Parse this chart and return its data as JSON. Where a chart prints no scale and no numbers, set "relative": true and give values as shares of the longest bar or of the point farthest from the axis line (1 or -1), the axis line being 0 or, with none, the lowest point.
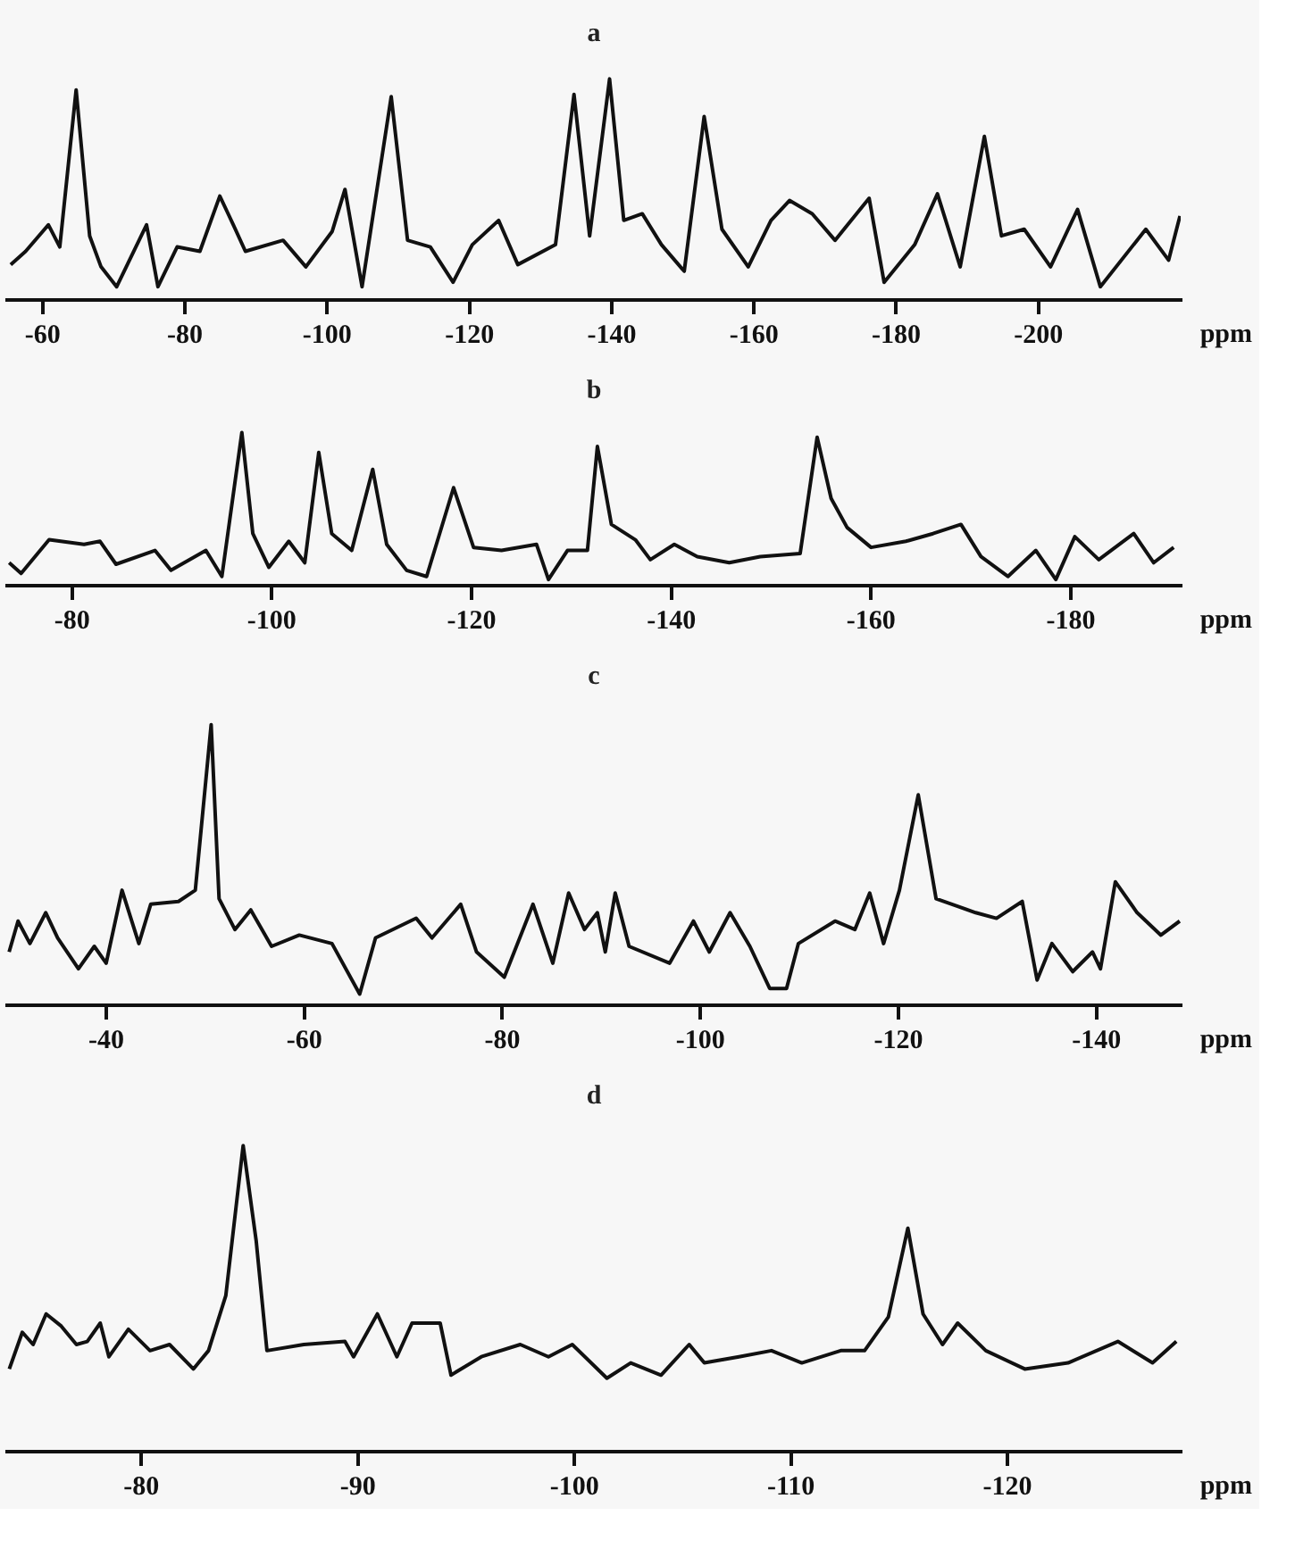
{
  "chart_data": [
    {
      "type": "line",
      "title": "a",
      "xlabel": "ppm",
      "relative": true,
      "xlim": [
        -55,
        -220
      ],
      "xticks": [
        -60,
        -80,
        -100,
        -120,
        -140,
        -160,
        -180,
        -200
      ],
      "color": "#111111",
      "x": [
        -55.5,
        -57.6,
        -60.8,
        -62.4,
        -64.7,
        -66.6,
        -68.2,
        -70.4,
        -74.6,
        -76.2,
        -78.9,
        -82.1,
        -84.9,
        -86.8,
        -88.5,
        -93.8,
        -97,
        -100.7,
        -102.5,
        -104.9,
        -109,
        -111.3,
        -114.5,
        -117.7,
        -120.4,
        -124.1,
        -126.8,
        -132.1,
        -134.7,
        -136.9,
        -139.7,
        -141.7,
        -144.3,
        -147,
        -150.2,
        -153,
        -155.5,
        -159.2,
        -162.4,
        -165,
        -168.2,
        -171.4,
        -176.2,
        -178.3,
        -182.6,
        -185.8,
        -189,
        -192.4,
        -194.8,
        -198,
        -201.7,
        -205.5,
        -208.7,
        -215.1,
        -218.3,
        -219.9
      ],
      "values": [
        0.16,
        0.22,
        0.34,
        0.24,
        0.95,
        0.29,
        0.15,
        0.06,
        0.34,
        0.06,
        0.24,
        0.22,
        0.47,
        0.34,
        0.22,
        0.27,
        0.15,
        0.31,
        0.5,
        0.06,
        0.92,
        0.27,
        0.24,
        0.08,
        0.25,
        0.36,
        0.16,
        0.25,
        0.93,
        0.29,
        1,
        0.36,
        0.39,
        0.25,
        0.13,
        0.83,
        0.32,
        0.15,
        0.36,
        0.45,
        0.39,
        0.27,
        0.46,
        0.08,
        0.25,
        0.48,
        0.15,
        0.74,
        0.29,
        0.32,
        0.15,
        0.41,
        0.06,
        0.32,
        0.18,
        0.38
      ]
    },
    {
      "type": "line",
      "title": "b",
      "xlabel": "ppm",
      "relative": true,
      "xlim": [
        -73.5,
        -191
      ],
      "xticks": [
        -80,
        -100,
        -120,
        -140,
        -160,
        -180
      ],
      "color": "#111111",
      "x": [
        -73.7,
        -74.9,
        -77.7,
        -81.2,
        -82.8,
        -84.4,
        -88.3,
        -89.9,
        -93.4,
        -95,
        -97,
        -98.1,
        -99.7,
        -101.7,
        -103.3,
        -104.7,
        -106,
        -108,
        -110.1,
        -111.5,
        -113.5,
        -115.5,
        -118.2,
        -120.2,
        -123,
        -126.5,
        -127.7,
        -129.6,
        -131.6,
        -132.6,
        -134,
        -136.4,
        -137.9,
        -140.3,
        -142.6,
        -145.8,
        -148.9,
        -152.9,
        -154.6,
        -156,
        -157.6,
        -160,
        -163.5,
        -166.2,
        -169,
        -171,
        -173.7,
        -176.5,
        -178.5,
        -180.4,
        -182.8,
        -186.3,
        -188.3,
        -190.3
      ],
      "values": [
        0.15,
        0.08,
        0.3,
        0.27,
        0.29,
        0.14,
        0.23,
        0.1,
        0.23,
        0.06,
        1,
        0.34,
        0.12,
        0.29,
        0.15,
        0.87,
        0.34,
        0.23,
        0.76,
        0.27,
        0.1,
        0.06,
        0.64,
        0.25,
        0.23,
        0.27,
        0.04,
        0.23,
        0.23,
        0.91,
        0.4,
        0.3,
        0.17,
        0.27,
        0.19,
        0.15,
        0.19,
        0.21,
        0.97,
        0.57,
        0.38,
        0.25,
        0.29,
        0.34,
        0.4,
        0.19,
        0.06,
        0.23,
        0.04,
        0.32,
        0.17,
        0.34,
        0.15,
        0.25
      ]
    },
    {
      "type": "line",
      "title": "c",
      "xlabel": "ppm",
      "relative": true,
      "xlim": [
        -30,
        -148.5
      ],
      "xticks": [
        -40,
        -60,
        -80,
        -100,
        -120,
        -140
      ],
      "color": "#111111",
      "x": [
        -30.2,
        -31.1,
        -32.3,
        -33.9,
        -35.1,
        -37.2,
        -38.8,
        -40,
        -41.6,
        -43.3,
        -44.5,
        -47.3,
        -49,
        -50.6,
        -51.4,
        -53,
        -54.6,
        -56.7,
        -59.5,
        -62.8,
        -65.6,
        -67.2,
        -71.3,
        -72.9,
        -75.8,
        -77.4,
        -80.2,
        -83.1,
        -85.1,
        -86.7,
        -88.3,
        -89.6,
        -90.4,
        -91.4,
        -92.8,
        -96.9,
        -99.3,
        -100.9,
        -103,
        -105,
        -107,
        -108.7,
        -109.9,
        -113.6,
        -115.6,
        -117.1,
        -118.5,
        -120.1,
        -122,
        -123.8,
        -127.8,
        -129.9,
        -132.5,
        -134,
        -135.5,
        -137.6,
        -139.6,
        -140.4,
        -141.9,
        -144.1,
        -146.5,
        -148.4
      ],
      "values": [
        0.19,
        0.3,
        0.22,
        0.33,
        0.24,
        0.13,
        0.21,
        0.15,
        0.41,
        0.22,
        0.36,
        0.37,
        0.41,
        1,
        0.38,
        0.27,
        0.34,
        0.21,
        0.25,
        0.22,
        0.04,
        0.24,
        0.31,
        0.24,
        0.36,
        0.19,
        0.1,
        0.36,
        0.15,
        0.4,
        0.27,
        0.33,
        0.19,
        0.4,
        0.21,
        0.15,
        0.3,
        0.19,
        0.33,
        0.21,
        0.06,
        0.06,
        0.22,
        0.3,
        0.27,
        0.4,
        0.22,
        0.41,
        0.75,
        0.38,
        0.33,
        0.31,
        0.37,
        0.09,
        0.22,
        0.12,
        0.19,
        0.13,
        0.44,
        0.33,
        0.25,
        0.3
      ]
    },
    {
      "type": "line",
      "title": "d",
      "xlabel": "ppm",
      "relative": true,
      "xlim": [
        -73.8,
        -128
      ],
      "xticks": [
        -80,
        -90,
        -100,
        -110,
        -120
      ],
      "color": "#111111",
      "x": [
        -73.9,
        -74.5,
        -75,
        -75.6,
        -76.3,
        -77,
        -77.5,
        -78.1,
        -78.5,
        -79.4,
        -80.4,
        -81.3,
        -82.4,
        -83.1,
        -83.9,
        -84.7,
        -85.3,
        -85.8,
        -87.5,
        -89.4,
        -89.8,
        -90.9,
        -91.8,
        -92.5,
        -93.8,
        -94.3,
        -95.7,
        -97.5,
        -98.8,
        -99.9,
        -101.5,
        -102.6,
        -104,
        -105.3,
        -106,
        -107.6,
        -109.1,
        -110.5,
        -112.3,
        -113.4,
        -114.5,
        -115.4,
        -116.1,
        -117,
        -117.7,
        -119,
        -120.8,
        -122.8,
        -125.1,
        -126.7,
        -127.8
      ],
      "values": [
        0.27,
        0.39,
        0.35,
        0.45,
        0.41,
        0.35,
        0.36,
        0.42,
        0.31,
        0.4,
        0.33,
        0.35,
        0.27,
        0.33,
        0.51,
        1,
        0.69,
        0.33,
        0.35,
        0.36,
        0.31,
        0.45,
        0.31,
        0.42,
        0.42,
        0.25,
        0.31,
        0.35,
        0.31,
        0.35,
        0.24,
        0.29,
        0.25,
        0.35,
        0.29,
        0.31,
        0.33,
        0.29,
        0.33,
        0.33,
        0.44,
        0.73,
        0.45,
        0.35,
        0.42,
        0.33,
        0.27,
        0.29,
        0.36,
        0.29,
        0.36
      ]
    }
  ]
}
